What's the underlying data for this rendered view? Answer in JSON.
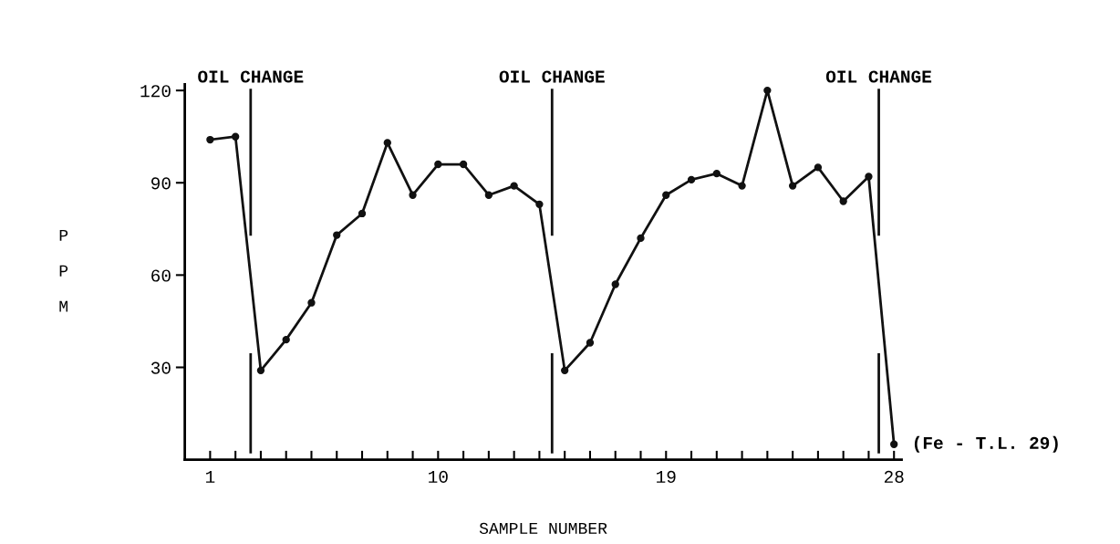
{
  "chart_data": {
    "type": "line",
    "xlabel": "SAMPLE NUMBER",
    "ylabel": "PPM",
    "x": [
      1,
      2,
      3,
      4,
      5,
      6,
      7,
      8,
      9,
      10,
      11,
      12,
      13,
      14,
      15,
      16,
      17,
      18,
      19,
      20,
      21,
      22,
      23,
      24,
      25,
      26,
      27,
      28
    ],
    "series": [
      {
        "color": "#111111",
        "values": [
          104,
          105,
          29,
          39,
          51,
          73,
          80,
          103,
          86,
          96,
          96,
          86,
          89,
          83,
          29,
          38,
          57,
          72,
          86,
          91,
          93,
          89,
          120,
          89,
          95,
          84,
          92,
          5
        ]
      }
    ],
    "xlim": [
      0,
      28.3
    ],
    "ylim": [
      0,
      122
    ],
    "xticks": [
      1,
      {
        "value": 2,
        "label": null
      },
      {
        "value": 3,
        "label": null
      },
      {
        "value": 4,
        "label": null
      },
      {
        "value": 5,
        "label": null
      },
      {
        "value": 6,
        "label": null
      },
      {
        "value": 7,
        "label": null
      },
      {
        "value": 8,
        "label": null
      },
      {
        "value": 9,
        "label": null
      },
      10,
      {
        "value": 11,
        "label": null
      },
      {
        "value": 12,
        "label": null
      },
      {
        "value": 13,
        "label": null
      },
      {
        "value": 14,
        "label": null
      },
      {
        "value": 15,
        "label": null
      },
      {
        "value": 16,
        "label": null
      },
      {
        "value": 17,
        "label": null
      },
      {
        "value": 18,
        "label": null
      },
      19,
      {
        "value": 20,
        "label": null
      },
      {
        "value": 21,
        "label": null
      },
      {
        "value": 22,
        "label": null
      },
      {
        "value": 23,
        "label": null
      },
      {
        "value": 24,
        "label": null
      },
      {
        "value": 25,
        "label": null
      },
      {
        "value": 26,
        "label": null
      },
      {
        "value": 27,
        "label": null
      },
      28
    ],
    "yticks": [
      30,
      60,
      90,
      120
    ],
    "ref_lines": [
      {
        "axis": "x",
        "value": 2.6,
        "label": "OIL CHANGE",
        "color": "#111111"
      },
      {
        "axis": "x",
        "value": 14.5,
        "label": "OIL CHANGE",
        "color": "#111111"
      },
      {
        "axis": "x",
        "value": 27.4,
        "label": "OIL CHANGE",
        "color": "#111111"
      }
    ],
    "annotations": [
      {
        "text": "(Fe - T.L. 29)",
        "x": 28,
        "y": 5
      }
    ],
    "marker": "circle",
    "line_style": "solid",
    "grid": false,
    "legend": false
  }
}
